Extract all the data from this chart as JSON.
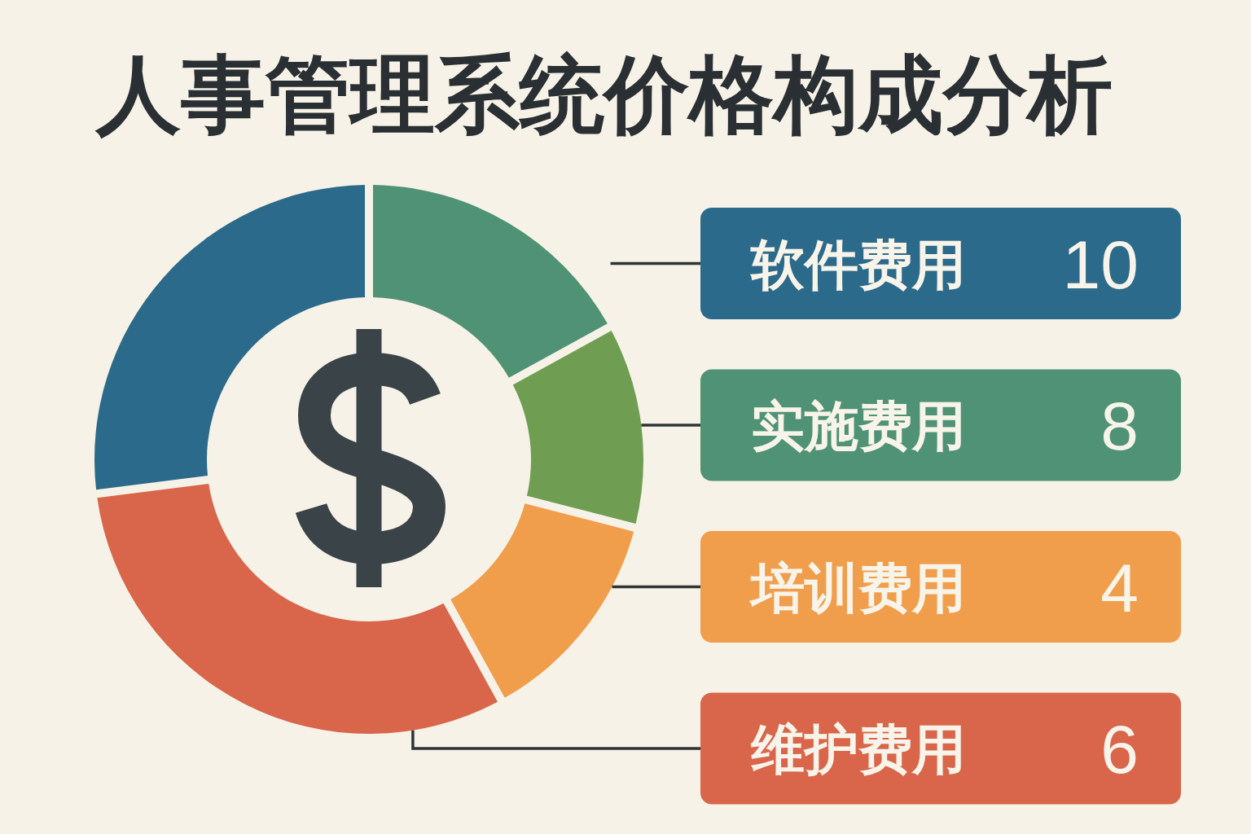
{
  "chart_data": [
    {
      "type": "donut",
      "title": "人事管理系统价格构成分析",
      "categories": [
        null,
        null,
        null,
        null,
        null
      ],
      "values": [
        27,
        17,
        12,
        13,
        31
      ],
      "colors": [
        "#2b6a8a",
        "#4f9275",
        "#6f9e53",
        "#f09e4b",
        "#d9654a"
      ]
    },
    {
      "type": "other",
      "categories": [
        "软件费用",
        "实施费用",
        "培训费用",
        "维护费用"
      ],
      "values": [
        10,
        8,
        4,
        6
      ],
      "colors": [
        "#2b6a8a",
        "#4f9275",
        "#f09e4b",
        "#d9654a"
      ],
      "data_labels": true
    }
  ]
}
